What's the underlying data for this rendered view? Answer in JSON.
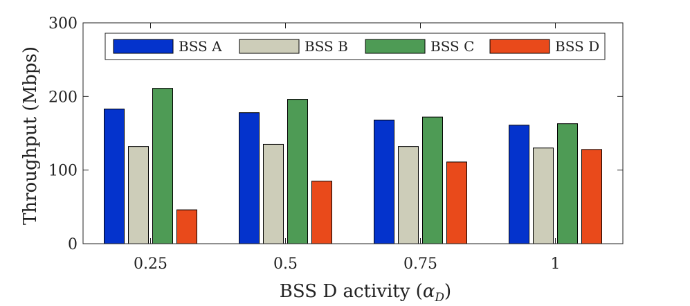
{
  "chart_data": {
    "type": "bar",
    "categories": [
      "0.25",
      "0.5",
      "0.75",
      "1"
    ],
    "series": [
      {
        "name": "BSS A",
        "color": "#0433cc",
        "values": [
          183,
          178,
          168,
          161
        ]
      },
      {
        "name": "BSS B",
        "color": "#cdcdb9",
        "values": [
          132,
          135,
          132,
          130
        ]
      },
      {
        "name": "BSS C",
        "color": "#4e9b55",
        "values": [
          211,
          196,
          172,
          163
        ]
      },
      {
        "name": "BSS D",
        "color": "#e94a1b",
        "values": [
          46,
          85,
          111,
          128
        ]
      }
    ],
    "title": "",
    "xlabel": "BSS D activity (",
    "xlabel_symbol": "α",
    "xlabel_subscript": "D",
    "xlabel_close": ")",
    "ylabel": "Throughput (Mbps)",
    "ylim": [
      0,
      300
    ],
    "yticks": [
      "0",
      "100",
      "200",
      "300"
    ],
    "legend": {
      "placement": "top",
      "orientation": "horizontal"
    },
    "grid": false
  }
}
